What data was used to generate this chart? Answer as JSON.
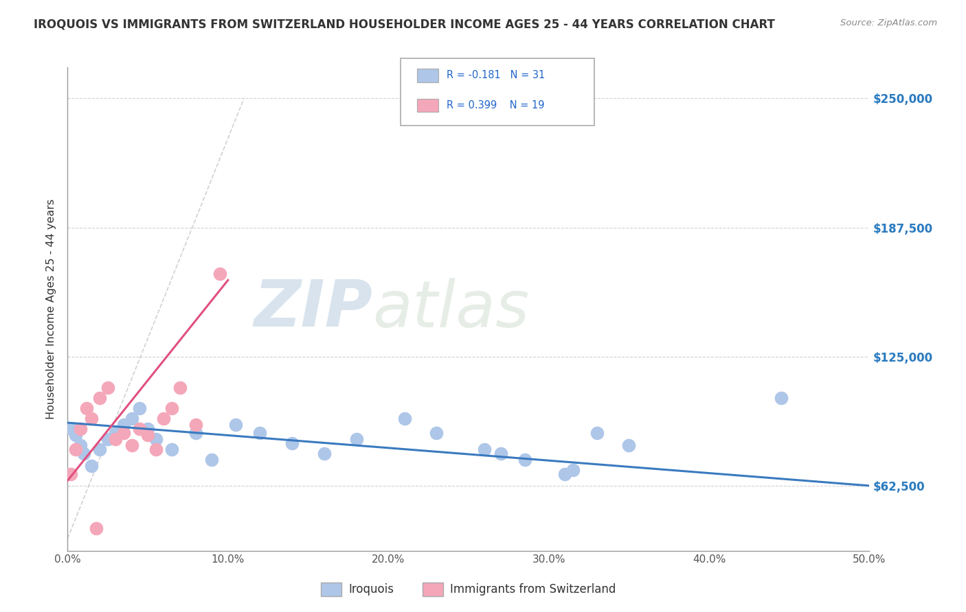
{
  "title": "IROQUOIS VS IMMIGRANTS FROM SWITZERLAND HOUSEHOLDER INCOME AGES 25 - 44 YEARS CORRELATION CHART",
  "source": "Source: ZipAtlas.com",
  "ylabel": "Householder Income Ages 25 - 44 years",
  "xlabel": "",
  "xlim": [
    0.0,
    50.0
  ],
  "ylim": [
    31000,
    265000
  ],
  "xticks": [
    0.0,
    10.0,
    20.0,
    30.0,
    40.0,
    50.0
  ],
  "yticks": [
    62500,
    125000,
    187500,
    250000
  ],
  "ytick_labels": [
    "$62,500",
    "$125,000",
    "$187,500",
    "$250,000"
  ],
  "xtick_labels": [
    "0.0%",
    "10.0%",
    "20.0%",
    "30.0%",
    "40.0%",
    "50.0%"
  ],
  "legend_label1": "Iroquois",
  "legend_label2": "Immigrants from Switzerland",
  "r1": -0.181,
  "n1": 31,
  "r2": 0.399,
  "n2": 19,
  "color1": "#aec6e8",
  "color2": "#f4a7b9",
  "line_color1": "#3a7abf",
  "line_color2": "#e05080",
  "diag_line_color": "#cccccc",
  "watermark_color": "#cdd8e8",
  "background_color": "#ffffff",
  "grid_color": "#cccccc",
  "blue_x": [
    0.3,
    0.5,
    0.8,
    1.0,
    1.5,
    2.0,
    2.5,
    3.0,
    3.5,
    4.0,
    4.5,
    5.0,
    5.5,
    6.5,
    8.0,
    9.0,
    10.5,
    12.0,
    14.0,
    16.0,
    18.0,
    21.0,
    23.0,
    26.0,
    28.5,
    31.5,
    33.0,
    35.0,
    44.5,
    31.0,
    27.0
  ],
  "blue_y": [
    90000,
    87000,
    82000,
    78000,
    72000,
    80000,
    85000,
    88000,
    92000,
    95000,
    100000,
    90000,
    85000,
    80000,
    88000,
    75000,
    92000,
    88000,
    83000,
    78000,
    85000,
    95000,
    88000,
    80000,
    75000,
    70000,
    88000,
    82000,
    105000,
    68000,
    78000
  ],
  "pink_x": [
    0.2,
    0.5,
    0.8,
    1.2,
    1.5,
    2.0,
    2.5,
    3.0,
    3.5,
    4.0,
    4.5,
    5.0,
    5.5,
    6.0,
    6.5,
    7.0,
    8.0,
    9.5,
    1.8
  ],
  "pink_y": [
    68000,
    80000,
    90000,
    100000,
    95000,
    105000,
    110000,
    85000,
    88000,
    82000,
    90000,
    87000,
    80000,
    95000,
    100000,
    110000,
    92000,
    165000,
    42000
  ],
  "watermark_zip": "ZIP",
  "watermark_atlas": "atlas",
  "blue_trend_x0": 0.0,
  "blue_trend_y0": 93000,
  "blue_trend_x1": 50.0,
  "blue_trend_y1": 62500,
  "pink_trend_x0": 0.0,
  "pink_trend_y0": 65000,
  "pink_trend_x1": 10.0,
  "pink_trend_y1": 162000,
  "diag_x0": 0.0,
  "diag_y0": 37000,
  "diag_x1": 11.0,
  "diag_y1": 250000
}
